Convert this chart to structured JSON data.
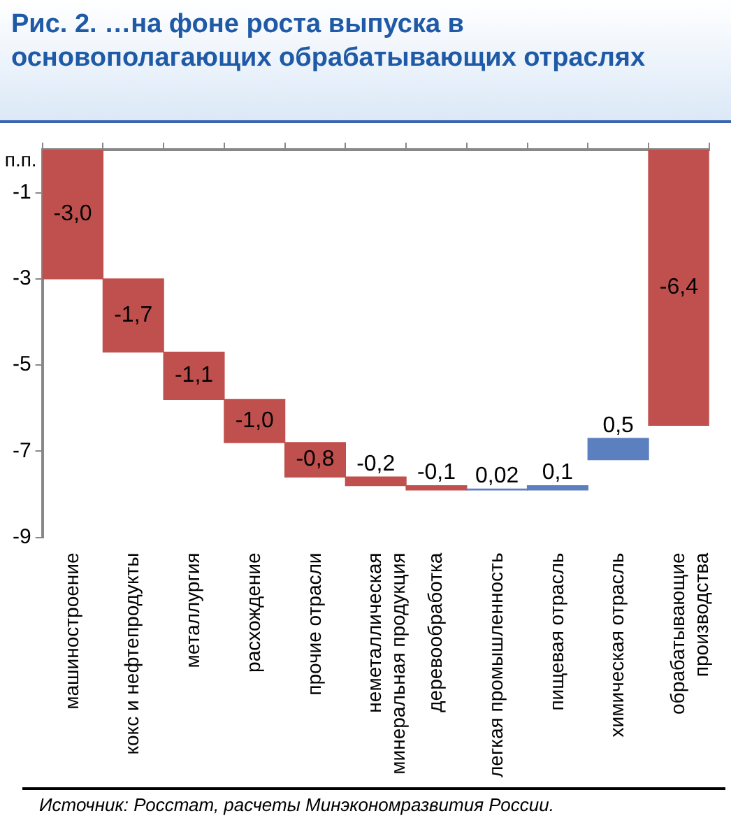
{
  "chart_data": {
    "type": "bar",
    "title": "Рис. 2. …на фоне роста выпуска в основополагающих обрабатывающих отраслях",
    "ylabel": "п.п.",
    "categories": [
      "машиностроение",
      "кокс и нефтепродукты",
      "металлургия",
      "расхождение",
      "прочие отрасли",
      "неметаллическая\nминеральная продукция",
      "деревообработка",
      "легкая промышленность",
      "пищевая отрасль",
      "химическая отрасль",
      "обрабатывающие\nпроизводства"
    ],
    "values": [
      -3.0,
      -1.7,
      -1.1,
      -1.0,
      -0.8,
      -0.2,
      -0.1,
      0.02,
      0.1,
      0.5,
      -6.4
    ],
    "base": [
      0,
      -3.0,
      -4.7,
      -5.8,
      -6.8,
      -7.6,
      -7.8,
      -7.9,
      -7.9,
      -7.2,
      0
    ],
    "colors": [
      "#c0504d",
      "#c0504d",
      "#c0504d",
      "#c0504d",
      "#c0504d",
      "#c0504d",
      "#c0504d",
      "#5b7fbf",
      "#5b7fbf",
      "#5b7fbf",
      "#c0504d"
    ],
    "value_labels": [
      "-3,0",
      "-1,7",
      "-1,1",
      "-1,0",
      "-0,8",
      "-0,2",
      "-0,1",
      "0,02",
      "0,1",
      "0,5",
      "-6,4"
    ],
    "ylim": [
      -9,
      0
    ],
    "yticks": [
      -1,
      -3,
      -5,
      -7,
      -9
    ],
    "grid": false,
    "legend": false,
    "annotations": [
      "Источник:  Росстат,  расчеты  Минэкономразвития  России."
    ]
  }
}
